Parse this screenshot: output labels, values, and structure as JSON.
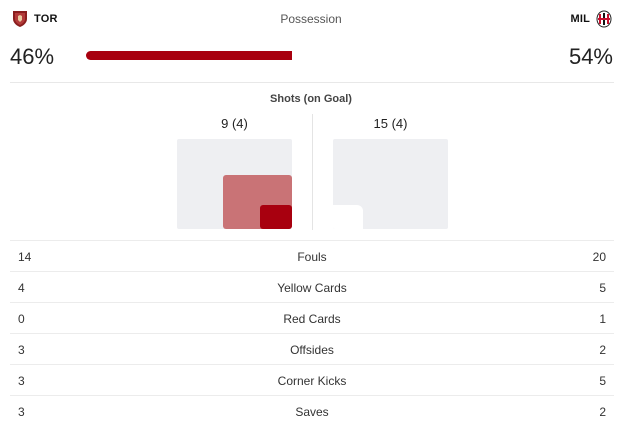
{
  "home": {
    "abbr": "TOR",
    "possession": "46%",
    "possession_value": 46,
    "crest_icon": "torino-crest-icon",
    "color": "#a8000f"
  },
  "away": {
    "abbr": "MIL",
    "possession": "54%",
    "possession_value": 54,
    "crest_icon": "milan-crest-icon",
    "color": "#a8000f"
  },
  "possession_title": "Possession",
  "shots": {
    "title": "Shots (on Goal)",
    "home_label": "9 (4)",
    "away_label": "15 (4)",
    "home_total": 9,
    "home_on_goal": 4,
    "away_total": 15,
    "away_on_goal": 4
  },
  "stats": [
    {
      "home": "14",
      "label": "Fouls",
      "away": "20"
    },
    {
      "home": "4",
      "label": "Yellow Cards",
      "away": "5"
    },
    {
      "home": "0",
      "label": "Red Cards",
      "away": "1"
    },
    {
      "home": "3",
      "label": "Offsides",
      "away": "2"
    },
    {
      "home": "3",
      "label": "Corner Kicks",
      "away": "5"
    },
    {
      "home": "3",
      "label": "Saves",
      "away": "2"
    }
  ]
}
